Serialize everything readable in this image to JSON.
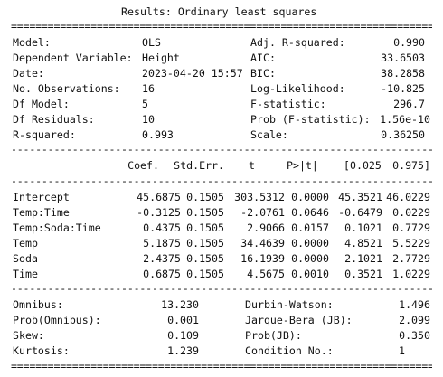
{
  "title": "Results: Ordinary least squares",
  "summary_left": [
    {
      "label": "Model:",
      "value": "OLS"
    },
    {
      "label": "Dependent Variable:",
      "value": "Height"
    },
    {
      "label": "Date:",
      "value": "2023-04-20 15:57"
    },
    {
      "label": "No. Observations:",
      "value": "16"
    },
    {
      "label": "Df Model:",
      "value": "5"
    },
    {
      "label": "Df Residuals:",
      "value": "10"
    },
    {
      "label": "R-squared:",
      "value": "0.993"
    }
  ],
  "summary_right": [
    {
      "label": "Adj. R-squared:",
      "value": "0.990"
    },
    {
      "label": "AIC:",
      "value": "33.6503"
    },
    {
      "label": "BIC:",
      "value": "38.2858"
    },
    {
      "label": "Log-Likelihood:",
      "value": "-10.825"
    },
    {
      "label": "F-statistic:",
      "value": "296.7"
    },
    {
      "label": "Prob (F-statistic):",
      "value": "1.56e-10"
    },
    {
      "label": "Scale:",
      "value": "0.36250"
    }
  ],
  "coef_headers": [
    "Coef.",
    "Std.Err.",
    "t",
    "P>|t|",
    "[0.025",
    "0.975]"
  ],
  "coef_rows": [
    {
      "name": "Intercept",
      "values": [
        "45.6875",
        "0.1505",
        "303.5312",
        "0.0000",
        "45.3521",
        "46.0229"
      ]
    },
    {
      "name": "Temp:Time",
      "values": [
        "-0.3125",
        "0.1505",
        "-2.0761",
        "0.0646",
        "-0.6479",
        "0.0229"
      ]
    },
    {
      "name": "Temp:Soda:Time",
      "values": [
        "0.4375",
        "0.1505",
        "2.9066",
        "0.0157",
        "0.1021",
        "0.7729"
      ]
    },
    {
      "name": "Temp",
      "values": [
        "5.1875",
        "0.1505",
        "34.4639",
        "0.0000",
        "4.8521",
        "5.5229"
      ]
    },
    {
      "name": "Soda",
      "values": [
        "2.4375",
        "0.1505",
        "16.1939",
        "0.0000",
        "2.1021",
        "2.7729"
      ]
    },
    {
      "name": "Time",
      "values": [
        "0.6875",
        "0.1505",
        "4.5675",
        "0.0010",
        "0.3521",
        "1.0229"
      ]
    }
  ],
  "diag_left": [
    {
      "label": "Omnibus:",
      "value": "13.230"
    },
    {
      "label": "Prob(Omnibus):",
      "value": "0.001"
    },
    {
      "label": "Skew:",
      "value": "0.109"
    },
    {
      "label": "Kurtosis:",
      "value": "1.239"
    }
  ],
  "diag_right": [
    {
      "label": "Durbin-Watson:",
      "value": "1.496"
    },
    {
      "label": "Jarque-Bera (JB):",
      "value": "2.099"
    },
    {
      "label": "Prob(JB):",
      "value": "0.350"
    },
    {
      "label": "Condition No.:",
      "value": "1"
    }
  ],
  "rule_double": "================================================================================",
  "rule_single": "--------------------------------------------------------------------------------"
}
